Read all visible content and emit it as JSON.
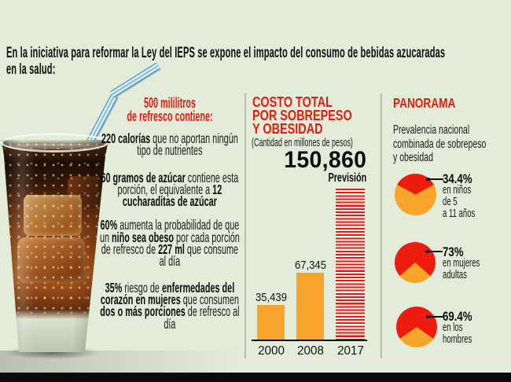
{
  "page": {
    "headline": "En la iniciativa para reformar la Ley del IEPS se expone el impacto del consumo de bebidas azucaradas en la salud:",
    "headline_lines": [
      "En la iniciativa para reformar la Ley del IEPS se expone el impacto del consumo de bebidas azucaradas",
      "en la salud:"
    ],
    "background_color": "#e3ecd9"
  },
  "colors": {
    "bg": "#e3ecd9",
    "red": "#e8190f",
    "orange": "#f7a42a",
    "ink": "#141414",
    "sep": "#b3bfa9",
    "footer": "#0b0b0b"
  },
  "left_panel": {
    "serving_title": "500 mililitros de refresco contiene:",
    "serving_title_lines": [
      "500 mililitros",
      "de refresco contiene:"
    ],
    "facts": [
      {
        "segments": [
          {
            "t": "220 calorías",
            "b": true
          },
          {
            "t": " que no aportan ningún tipo de nutrientes",
            "b": false
          }
        ]
      },
      {
        "segments": [
          {
            "t": "60 gramos de azúcar",
            "b": true
          },
          {
            "t": " contiene esta porción, el equivalente a ",
            "b": false
          },
          {
            "t": "12 cucharaditas de azúcar",
            "b": true
          }
        ]
      },
      {
        "segments": [
          {
            "t": "60%",
            "b": true
          },
          {
            "t": " aumenta la probabilidad de que un ",
            "b": false
          },
          {
            "t": "niño sea obeso",
            "b": true
          },
          {
            "t": " por cada porción de refresco de ",
            "b": false
          },
          {
            "t": "227 ml",
            "b": true
          },
          {
            "t": " que consume al día",
            "b": false
          }
        ]
      },
      {
        "segments": [
          {
            "t": "35%",
            "b": true
          },
          {
            "t": " riesgo de ",
            "b": false
          },
          {
            "t": "enfermedades del corazón en mujeres",
            "b": true
          },
          {
            "t": " que consumen ",
            "b": false
          },
          {
            "t": "dos o más porciones",
            "b": true
          },
          {
            "t": " de refresco al día",
            "b": false
          }
        ]
      }
    ]
  },
  "cost_panel": {
    "title_lines": [
      "COSTO TOTAL",
      "POR SOBREPESO",
      "Y OBESIDAD"
    ],
    "subtitle": "(Cantidad en millones de pesos)"
  },
  "panorama_panel": {
    "title": "PANORAMA",
    "subtitle": "Prevalencia nacional combinada de sobrepeso y obesidad",
    "subtitle_lines": [
      "Prevalencia nacional",
      "combinada de sobrepeso",
      "y obesidad"
    ]
  },
  "chart_data": [
    {
      "type": "bar",
      "title": "COSTO TOTAL POR SOBREPESO Y OBESIDAD",
      "subtitle": "(Cantidad en millones de pesos)",
      "categories": [
        "2000",
        "2008",
        "2017"
      ],
      "values": [
        35439,
        67345,
        150860
      ],
      "value_labels": [
        "35,439",
        "67,345",
        "150,860"
      ],
      "annotation": "Previsión",
      "highlight_category": "2017",
      "highlight_style": "red-horizontal-stripes",
      "bar_color": "#f7a42a",
      "ylim": [
        0,
        160000
      ],
      "unit": "millones de pesos"
    },
    {
      "type": "pie",
      "label": "34.4%",
      "value_pct": 34.4,
      "desc": "en niños de 5 a 11 años",
      "desc_lines": [
        "en niños",
        "de 5",
        "a 11 años"
      ],
      "slice_color": "#ee1c0e",
      "remainder_color": "#f7a42a",
      "slice_position": "top"
    },
    {
      "type": "pie",
      "label": "73%",
      "value_pct": 73,
      "desc": "en mujeres adultas",
      "desc_lines": [
        "en mujeres",
        "adultas"
      ],
      "slice_color": "#ee1c0e",
      "remainder_color": "#f7a42a",
      "slice_position": "top"
    },
    {
      "type": "pie",
      "label": "69.4%",
      "value_pct": 69.4,
      "desc": "en los hombres",
      "desc_lines": [
        "en los",
        "hombres"
      ],
      "slice_color": "#ee1c0e",
      "remainder_color": "#f7a42a",
      "slice_position": "top"
    }
  ]
}
